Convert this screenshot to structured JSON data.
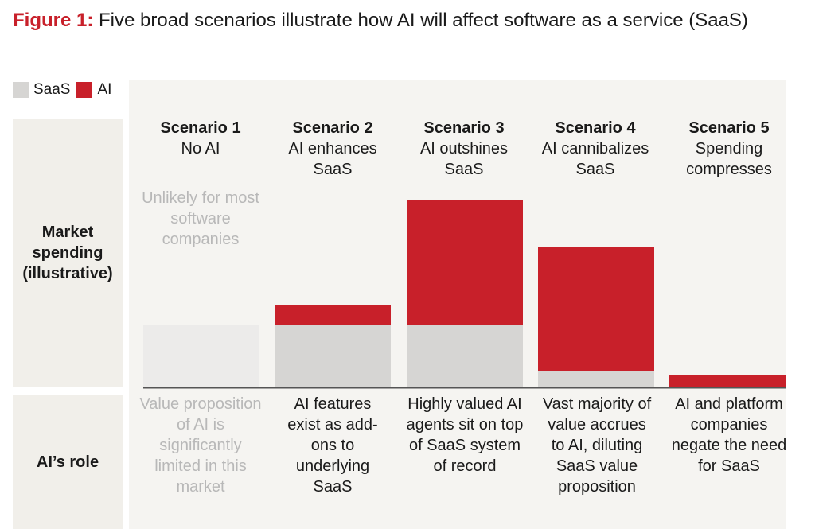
{
  "title": {
    "figure_label": "Figure 1:",
    "text": " Five broad scenarios illustrate how AI will affect software as a service (SaaS)"
  },
  "legend": [
    {
      "label": "SaaS",
      "color": "#d6d5d3"
    },
    {
      "label": "AI",
      "color": "#c8202a"
    }
  ],
  "row_labels": {
    "market": "Market spending (illustrative)",
    "role": "AI’s role"
  },
  "annotation_unlikely": "Unlikely for most software companies",
  "colors": {
    "saas": "#d6d5d3",
    "ai": "#c8202a",
    "saas_faded": "#ecebea",
    "axis": "#555555"
  },
  "chart_data": {
    "type": "bar",
    "stacked": true,
    "categories": [
      "Scenario 1",
      "Scenario 2",
      "Scenario 3",
      "Scenario 4",
      "Scenario 5"
    ],
    "series": [
      {
        "name": "SaaS",
        "values": [
          79,
          79,
          79,
          20,
          0
        ]
      },
      {
        "name": "AI",
        "values": [
          0,
          24,
          157,
          157,
          16
        ]
      }
    ],
    "ylim": [
      0,
      250
    ],
    "grid": false,
    "legend_position": "top-left",
    "scenarios": [
      {
        "name": "Scenario 1",
        "desc": "No AI",
        "role": "Value proposition of AI is significantly limited in this market",
        "faded": true
      },
      {
        "name": "Scenario 2",
        "desc": "AI enhances SaaS",
        "role": "AI features exist as add-ons to underlying SaaS",
        "faded": false
      },
      {
        "name": "Scenario 3",
        "desc": "AI outshines SaaS",
        "role": "Highly valued AI agents sit on top of SaaS system of record",
        "faded": false
      },
      {
        "name": "Scenario 4",
        "desc": "AI cannibalizes SaaS",
        "role": "Vast majority of value accrues to AI, diluting SaaS value proposition",
        "faded": false
      },
      {
        "name": "Scenario 5",
        "desc": "Spending compresses",
        "role": "AI and platform companies negate the need for SaaS",
        "faded": false
      }
    ]
  }
}
